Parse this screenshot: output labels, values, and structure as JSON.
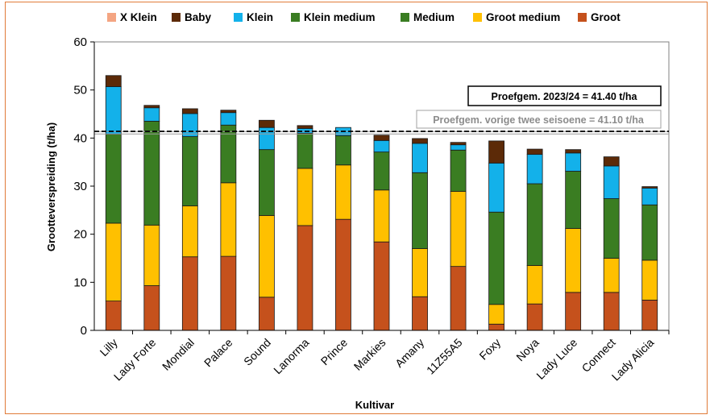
{
  "chart_data": {
    "type": "bar",
    "stacked": true,
    "xlabel": "Kultivar",
    "ylabel": "Grootteverspreiding (t/ha)",
    "ylim": [
      0,
      60
    ],
    "yticks": [
      0,
      10,
      20,
      30,
      40,
      50,
      60
    ],
    "legend_position": "top",
    "categories": [
      "Lilly",
      "Lady Forte",
      "Mondial",
      "Palace",
      "Sound",
      "Lanorma",
      "Prince",
      "Markies",
      "Amany",
      "11Z55A5",
      "Foxy",
      "Noya",
      "Lady Luce",
      "Connect",
      "Lady Alicia"
    ],
    "series": [
      {
        "name": "Groot",
        "color": "#c5511c",
        "values": [
          6.1,
          9.3,
          15.3,
          15.4,
          6.9,
          21.8,
          23.1,
          18.4,
          7.0,
          13.3,
          1.3,
          5.5,
          7.9,
          7.9,
          6.3
        ]
      },
      {
        "name": "Groot medium",
        "color": "#ffc000",
        "values": [
          16.2,
          12.6,
          10.6,
          15.3,
          17.0,
          11.9,
          11.3,
          10.8,
          10.0,
          15.6,
          4.1,
          8.0,
          13.3,
          7.1,
          8.3
        ]
      },
      {
        "name": "Medium",
        "color": "#3a7d22",
        "values": [
          18.5,
          21.6,
          14.4,
          12.0,
          13.7,
          7.3,
          6.1,
          7.9,
          15.8,
          8.6,
          19.2,
          17.0,
          11.9,
          12.4,
          11.5
        ]
      },
      {
        "name": "Klein medium",
        "color": "#3a7d22",
        "values": [
          0,
          0,
          0,
          0,
          0,
          0,
          0,
          0,
          0,
          0,
          0,
          0,
          0,
          0,
          0
        ]
      },
      {
        "name": "Klein",
        "color": "#13b1ea",
        "values": [
          9.9,
          2.8,
          4.8,
          2.6,
          4.6,
          1.0,
          1.7,
          2.4,
          6.1,
          1.1,
          10.2,
          6.1,
          3.8,
          6.8,
          3.5
        ]
      },
      {
        "name": "Baby",
        "color": "#5c2a08",
        "values": [
          2.3,
          0.5,
          1.0,
          0.5,
          1.5,
          0.6,
          0.0,
          1.1,
          1.0,
          0.5,
          4.6,
          1.1,
          0.7,
          1.9,
          0.3
        ]
      },
      {
        "name": "X Klein",
        "color": "#f4a582",
        "values": [
          0,
          0,
          0,
          0,
          0,
          0,
          0,
          0,
          0,
          0,
          0,
          0,
          0,
          0,
          0
        ]
      }
    ],
    "legend_order": [
      "X Klein",
      "Baby",
      "Klein",
      "Klein medium",
      "Medium",
      "Groot medium",
      "Groot"
    ],
    "reference_lines": [
      {
        "label": "Proefgem. 2023/24 = 41.40  t/ha",
        "value": 41.4,
        "style": "black-dashed"
      },
      {
        "label": "Proefgem. vorige twee seisoene = 41.10 t/ha",
        "value": 41.1,
        "style": "grey-double"
      }
    ]
  }
}
